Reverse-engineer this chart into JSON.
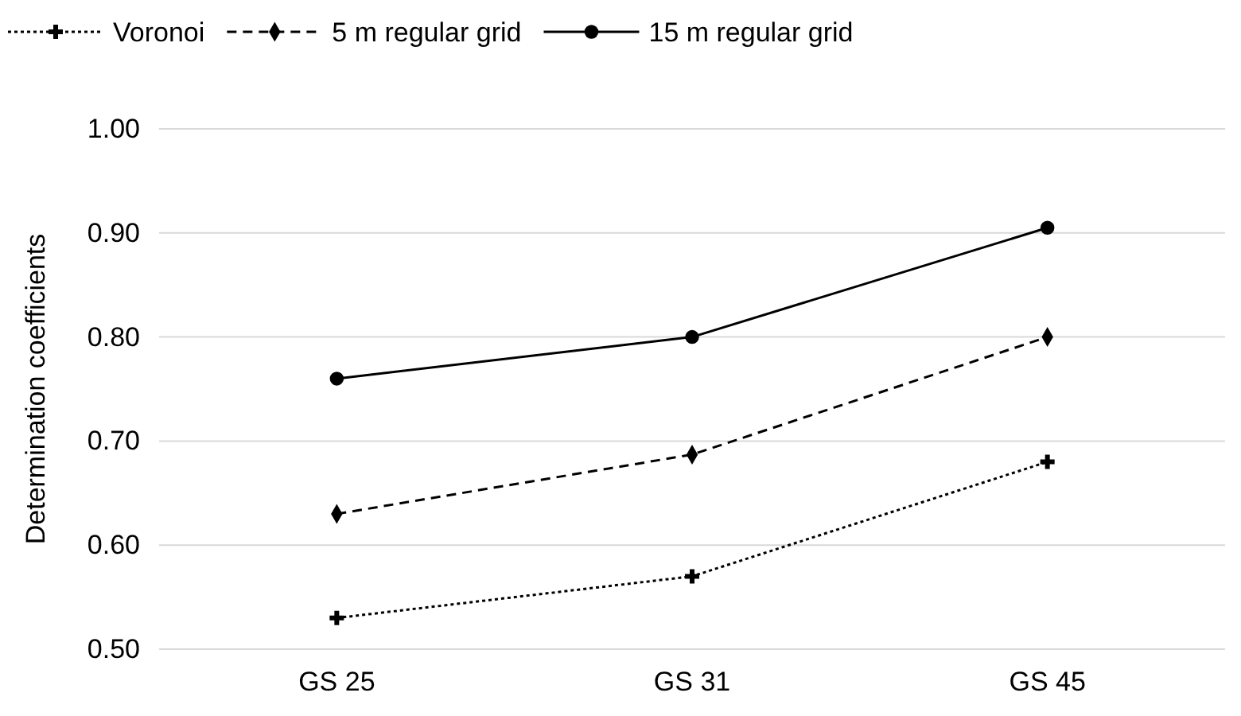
{
  "chart_data": {
    "type": "line",
    "ylabel": "Determination coefficients",
    "categories": [
      "GS 25",
      "GS 31",
      "GS 45"
    ],
    "series": [
      {
        "name": "Voronoi",
        "color": "#000000",
        "values": [
          0.53,
          0.57,
          0.68
        ],
        "line_style": "dotted",
        "marker": "cross"
      },
      {
        "name": "5 m regular grid",
        "color": "#000000",
        "values": [
          0.63,
          0.687,
          0.8
        ],
        "line_style": "dashed",
        "marker": "diamond"
      },
      {
        "name": "15 m regular grid",
        "color": "#000000",
        "values": [
          0.76,
          0.8,
          0.905
        ],
        "line_style": "solid",
        "marker": "circle"
      }
    ],
    "ylim": [
      0.5,
      1.0
    ],
    "yticks": [
      {
        "value": 0.5,
        "label": "0.50"
      },
      {
        "value": 0.6,
        "label": "0.60"
      },
      {
        "value": 0.7,
        "label": "0.70"
      },
      {
        "value": 0.8,
        "label": "0.80"
      },
      {
        "value": 0.9,
        "label": "0.90"
      },
      {
        "value": 1.0,
        "label": "1.00"
      }
    ],
    "grid": "y",
    "legend": "top"
  }
}
